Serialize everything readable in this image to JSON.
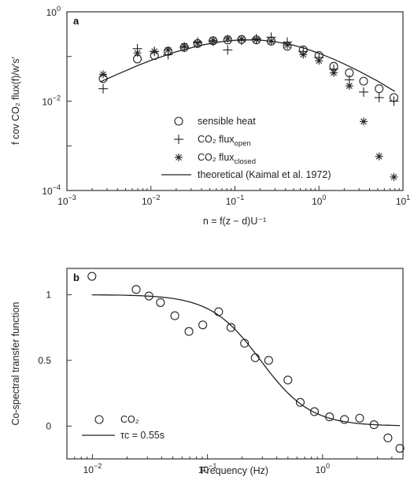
{
  "chart_data": [
    {
      "type": "scatter",
      "panel_label": "a",
      "xscale": "log",
      "yscale": "log",
      "xlim": [
        0.001,
        10
      ],
      "ylim": [
        0.0001,
        1
      ],
      "x_ticks": [
        {
          "base": "10",
          "exp": "−3"
        },
        {
          "base": "10",
          "exp": "−2"
        },
        {
          "base": "10",
          "exp": "−1"
        },
        {
          "base": "10",
          "exp": "0"
        },
        {
          "base": "10",
          "exp": "1"
        }
      ],
      "y_ticks": [
        {
          "base": "10",
          "exp": "−4"
        },
        {
          "base": "10",
          "exp": "−2"
        },
        {
          "base": "10",
          "exp": "0"
        }
      ],
      "xlabel": "n = f(z − d)U⁻¹",
      "ylabel": "f cov CO₂ flux(f)/w′s′",
      "legend_position": "center",
      "series": [
        {
          "name": "sensible heat",
          "marker": "circle",
          "x": [
            0.0027,
            0.0069,
            0.011,
            0.016,
            0.025,
            0.036,
            0.055,
            0.082,
            0.12,
            0.18,
            0.27,
            0.42,
            0.65,
            1.0,
            1.5,
            2.3,
            3.4,
            5.2,
            7.8
          ],
          "y": [
            0.032,
            0.088,
            0.105,
            0.13,
            0.16,
            0.195,
            0.225,
            0.235,
            0.24,
            0.235,
            0.22,
            0.17,
            0.14,
            0.105,
            0.06,
            0.043,
            0.028,
            0.019,
            0.012
          ]
        },
        {
          "name": "CO₂ fluxopen",
          "marker": "plus",
          "x": [
            0.0027,
            0.0069,
            0.011,
            0.016,
            0.025,
            0.036,
            0.055,
            0.082,
            0.12,
            0.18,
            0.27,
            0.42,
            0.65,
            1.0,
            1.5,
            2.3,
            3.4,
            5.2,
            7.8
          ],
          "y": [
            0.019,
            0.15,
            0.13,
            0.11,
            0.16,
            0.21,
            0.22,
            0.14,
            0.23,
            0.25,
            0.27,
            0.21,
            0.13,
            0.095,
            0.052,
            0.03,
            0.016,
            0.012,
            0.01
          ]
        },
        {
          "name": "CO₂ fluxclosed",
          "marker": "asterisk",
          "x": [
            0.0027,
            0.0069,
            0.011,
            0.016,
            0.025,
            0.036,
            0.055,
            0.082,
            0.12,
            0.18,
            0.27,
            0.42,
            0.65,
            1.0,
            1.5,
            2.3,
            3.4,
            5.2,
            7.8
          ],
          "y": [
            0.04,
            0.12,
            0.13,
            0.14,
            0.17,
            0.2,
            0.23,
            0.25,
            0.245,
            0.24,
            0.22,
            0.18,
            0.11,
            0.08,
            0.043,
            0.022,
            0.0035,
            0.00058,
            0.0002
          ]
        },
        {
          "name": "theoretical (Kaimal et al. 1972)",
          "marker": "line",
          "x": [
            0.0025,
            0.004,
            0.007,
            0.01,
            0.02,
            0.04,
            0.07,
            0.1,
            0.15,
            0.2,
            0.3,
            0.5,
            0.7,
            1.0,
            1.5,
            2.0,
            3.0,
            5.0,
            8.0
          ],
          "y": [
            0.027,
            0.04,
            0.063,
            0.082,
            0.128,
            0.18,
            0.215,
            0.23,
            0.236,
            0.232,
            0.215,
            0.178,
            0.149,
            0.118,
            0.087,
            0.068,
            0.047,
            0.028,
            0.0165
          ]
        }
      ],
      "legend_entries": [
        {
          "text": "sensible heat"
        },
        {
          "text": "CO₂ flux",
          "sub": "open"
        },
        {
          "text": "CO₂ flux",
          "sub": "closed"
        },
        {
          "text": "theoretical (Kaimal et al. 1972)"
        }
      ]
    },
    {
      "type": "scatter",
      "panel_label": "b",
      "xscale": "log",
      "yscale": "linear",
      "xlim": [
        0.006,
        5
      ],
      "ylim": [
        -0.25,
        1.2
      ],
      "x_ticks": [
        {
          "base": "10",
          "exp": "−2"
        },
        {
          "base": "10",
          "exp": "−1"
        },
        {
          "base": "10",
          "exp": "0"
        }
      ],
      "y_ticks": [
        "0",
        "0.5",
        "1"
      ],
      "xlabel": "Frequency (Hz)",
      "ylabel": "Co-spectral transfer function",
      "legend_position": "bottom-left",
      "series": [
        {
          "name": "CO₂",
          "marker": "circle",
          "x": [
            0.0099,
            0.024,
            0.031,
            0.039,
            0.052,
            0.069,
            0.091,
            0.125,
            0.16,
            0.21,
            0.26,
            0.34,
            0.5,
            0.64,
            0.85,
            1.15,
            1.55,
            2.1,
            2.8,
            3.7,
            4.7
          ],
          "y": [
            1.14,
            1.04,
            0.99,
            0.94,
            0.84,
            0.72,
            0.77,
            0.87,
            0.75,
            0.63,
            0.52,
            0.5,
            0.35,
            0.18,
            0.11,
            0.07,
            0.05,
            0.06,
            0.01,
            -0.09,
            -0.17
          ]
        },
        {
          "name": "τc = 0.55s",
          "marker": "line",
          "tau_c": 0.55
        }
      ],
      "legend_entries": [
        {
          "text": "CO₂"
        },
        {
          "text": "τc = 0.55s"
        }
      ]
    }
  ]
}
